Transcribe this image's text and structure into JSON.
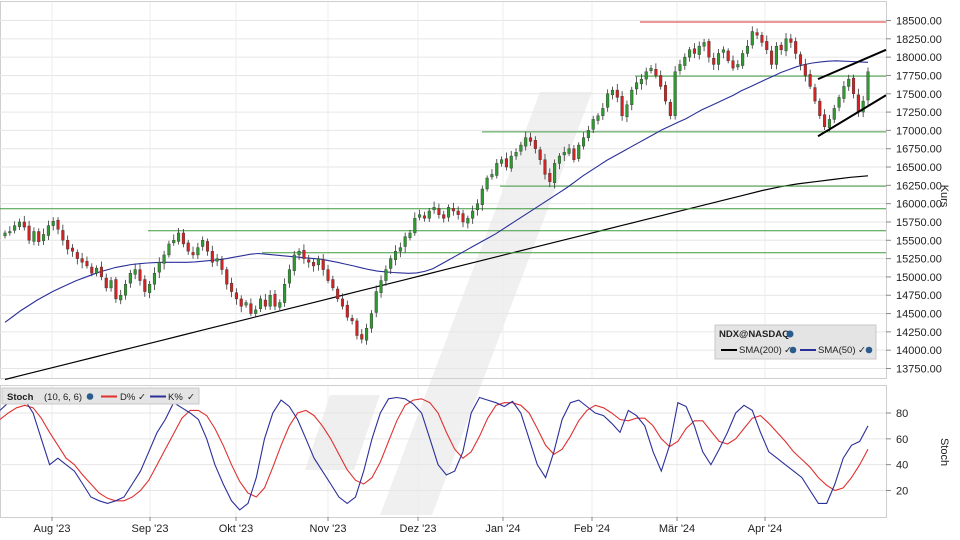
{
  "chart_data": [
    {
      "type": "candlestick",
      "symbol": "NDX@NASDAQ",
      "ylabel": "Kurs",
      "ylim": [
        13600,
        18600
      ],
      "y_ticks": [
        "18500.00",
        "18250.00",
        "18000.00",
        "17750.00",
        "17500.00",
        "17250.00",
        "17000.00",
        "16750.00",
        "16500.00",
        "16250.00",
        "16000.00",
        "15750.00",
        "15500.00",
        "15250.00",
        "15000.00",
        "14750.00",
        "14500.00",
        "14250.00",
        "14000.00",
        "13750.00"
      ],
      "x_ticks": [
        "Aug '23",
        "Sep '23",
        "Okt '23",
        "Nov '23",
        "Dez '23",
        "Jan '24",
        "Feb '24",
        "Mär '24",
        "Apr '24"
      ],
      "legend": {
        "title": "NDX@NASDAQ",
        "items": [
          {
            "name": "SMA(200)",
            "color": "#000000"
          },
          {
            "name": "SMA(50)",
            "color": "#2b2f99"
          }
        ]
      },
      "close": [
        15600,
        15620,
        15700,
        15750,
        15680,
        15500,
        15620,
        15480,
        15580,
        15700,
        15760,
        15650,
        15500,
        15380,
        15350,
        15250,
        15200,
        15150,
        15050,
        15120,
        15000,
        14850,
        14950,
        14700,
        14750,
        14900,
        15050,
        15100,
        14950,
        14800,
        14900,
        15050,
        15200,
        15300,
        15450,
        15500,
        15600,
        15450,
        15350,
        15300,
        15400,
        15500,
        15350,
        15200,
        15250,
        15100,
        14900,
        14800,
        14700,
        14600,
        14650,
        14500,
        14550,
        14700,
        14600,
        14750,
        14600,
        14650,
        14900,
        15100,
        15300,
        15350,
        15250,
        15200,
        15150,
        15250,
        15100,
        14950,
        14850,
        14700,
        14600,
        14450,
        14400,
        14200,
        14150,
        14300,
        14500,
        14800,
        14950,
        15100,
        15250,
        15350,
        15400,
        15550,
        15600,
        15800,
        15850,
        15800,
        15900,
        15950,
        15850,
        15800,
        15950,
        15900,
        15850,
        15750,
        15800,
        15900,
        16000,
        16200,
        16350,
        16400,
        16550,
        16600,
        16500,
        16650,
        16700,
        16800,
        16900,
        16850,
        16750,
        16600,
        16400,
        16300,
        16550,
        16650,
        16700,
        16750,
        16600,
        16800,
        16900,
        17000,
        17150,
        17200,
        17300,
        17500,
        17550,
        17450,
        17200,
        17350,
        17550,
        17650,
        17700,
        17800,
        17850,
        17750,
        17600,
        17400,
        17200,
        17800,
        17900,
        18000,
        18100,
        18050,
        18150,
        18200,
        18000,
        17900,
        18050,
        18100,
        17950,
        17850,
        17900,
        18050,
        18150,
        18350,
        18300,
        18200,
        18100,
        17900,
        18150,
        18100,
        18250,
        18200,
        18050,
        17900,
        17750,
        17600,
        17400,
        17200,
        17050,
        17150,
        17300,
        17450,
        17600,
        17700,
        17500,
        17250,
        17400,
        17800
      ],
      "sma50": [
        14380,
        14460,
        14540,
        14610,
        14680,
        14740,
        14800,
        14850,
        14900,
        14950,
        14990,
        15030,
        15070,
        15100,
        15130,
        15150,
        15170,
        15180,
        15190,
        15195,
        15200,
        15200,
        15200,
        15200,
        15205,
        15215,
        15225,
        15235,
        15250,
        15270,
        15290,
        15310,
        15320,
        15310,
        15300,
        15290,
        15280,
        15270,
        15260,
        15250,
        15240,
        15220,
        15200,
        15175,
        15150,
        15125,
        15100,
        15080,
        15070,
        15060,
        15055,
        15050,
        15055,
        15075,
        15110,
        15170,
        15230,
        15290,
        15350,
        15410,
        15470,
        15530,
        15590,
        15660,
        15730,
        15800,
        15870,
        15940,
        16010,
        16080,
        16150,
        16220,
        16300,
        16380,
        16450,
        16520,
        16590,
        16650,
        16710,
        16770,
        16830,
        16890,
        16950,
        17010,
        17060,
        17110,
        17160,
        17220,
        17280,
        17330,
        17380,
        17430,
        17480,
        17540,
        17590,
        17640,
        17690,
        17740,
        17790,
        17830,
        17870,
        17900,
        17920,
        17935,
        17945,
        17950,
        17945,
        17940,
        17935,
        17930
      ],
      "sma200": [
        13600,
        13660,
        13720,
        13780,
        13840,
        13900,
        13960,
        14020,
        14080,
        14140,
        14200,
        14260,
        14320,
        14380,
        14440,
        14500,
        14560,
        14620,
        14680,
        14740,
        14800,
        14860,
        14920,
        14980,
        15040,
        15100,
        15160,
        15220,
        15280,
        15340,
        15400,
        15460,
        15520,
        15580,
        15640,
        15700,
        15760,
        15820,
        15880,
        15940,
        16000,
        16060,
        16120,
        16180,
        16230,
        16270,
        16300,
        16330,
        16360,
        16380
      ],
      "horizontal_lines": [
        {
          "value": 18480,
          "color": "#e02b2b"
        },
        {
          "value": 17740,
          "color": "#3f9a3f"
        },
        {
          "value": 16980,
          "color": "#3f9a3f"
        },
        {
          "value": 16240,
          "color": "#3f9a3f"
        },
        {
          "value": 15930,
          "color": "#3f9a3f"
        },
        {
          "value": 15630,
          "color": "#3f9a3f"
        },
        {
          "value": 15330,
          "color": "#3f9a3f"
        }
      ],
      "channel": {
        "upper": [
          17700,
          18100
        ],
        "lower": [
          16920,
          17480
        ]
      }
    },
    {
      "type": "line",
      "title": "Stoch",
      "params": "(10, 6, 6)",
      "ylabel": "Stoch",
      "ylim": [
        0,
        100
      ],
      "y_ticks": [
        "80",
        "60",
        "40",
        "20"
      ],
      "legend": {
        "items": [
          {
            "name": "D%",
            "color": "#e03030"
          },
          {
            "name": "K%",
            "color": "#2b2f99"
          }
        ]
      },
      "series": [
        {
          "name": "K%",
          "values": [
            82,
            88,
            92,
            90,
            80,
            60,
            40,
            45,
            40,
            35,
            25,
            15,
            12,
            10,
            12,
            15,
            25,
            35,
            50,
            65,
            75,
            88,
            84,
            80,
            75,
            60,
            40,
            25,
            12,
            5,
            10,
            30,
            60,
            80,
            90,
            85,
            75,
            60,
            45,
            35,
            25,
            15,
            10,
            15,
            35,
            60,
            80,
            91,
            92,
            91,
            87,
            80,
            60,
            40,
            32,
            35,
            50,
            80,
            92,
            90,
            88,
            85,
            89,
            80,
            60,
            40,
            30,
            50,
            75,
            88,
            90,
            85,
            80,
            78,
            72,
            65,
            82,
            78,
            70,
            50,
            35,
            55,
            88,
            85,
            70,
            50,
            40,
            52,
            65,
            80,
            86,
            82,
            65,
            50,
            45,
            40,
            35,
            30,
            20,
            10,
            10,
            25,
            45,
            55,
            58,
            70
          ]
        },
        {
          "name": "D%",
          "values": [
            75,
            80,
            84,
            86,
            84,
            76,
            65,
            55,
            45,
            40,
            32,
            25,
            18,
            14,
            12,
            12,
            15,
            20,
            28,
            40,
            52,
            64,
            76,
            82,
            82,
            78,
            68,
            55,
            40,
            27,
            18,
            15,
            22,
            38,
            55,
            70,
            80,
            82,
            78,
            70,
            60,
            48,
            36,
            28,
            25,
            30,
            42,
            58,
            74,
            86,
            90,
            91,
            88,
            80,
            65,
            52,
            45,
            50,
            62,
            76,
            86,
            88,
            88,
            86,
            80,
            68,
            55,
            48,
            52,
            62,
            74,
            82,
            86,
            84,
            80,
            75,
            74,
            76,
            76,
            70,
            60,
            54,
            58,
            68,
            74,
            74,
            66,
            58,
            56,
            60,
            68,
            76,
            78,
            72,
            65,
            58,
            50,
            44,
            38,
            30,
            24,
            20,
            22,
            30,
            40,
            52
          ]
        }
      ]
    }
  ]
}
